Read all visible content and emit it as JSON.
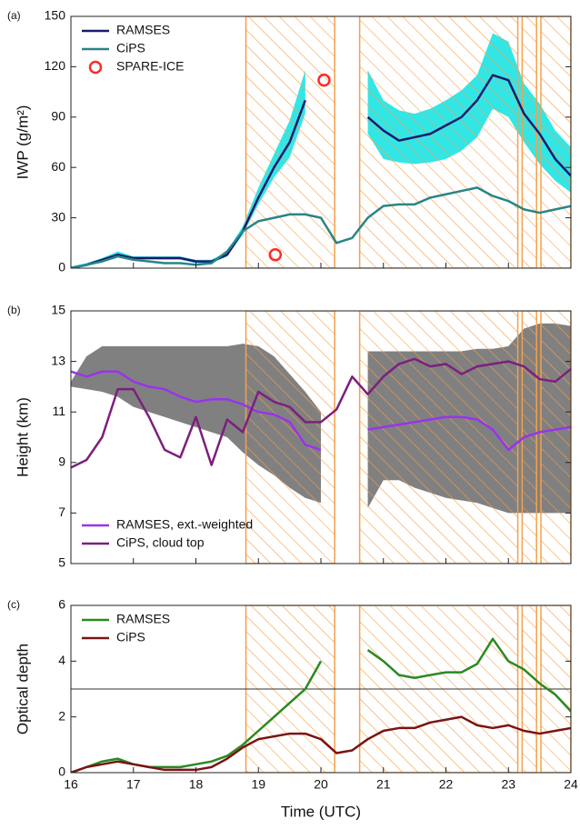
{
  "chart_data": [
    {
      "type": "line",
      "panel_label": "(a)",
      "y_label": "IWP (g/m²)",
      "xlim": [
        16,
        24
      ],
      "ylim": [
        0,
        150
      ],
      "yticks": [
        0,
        30,
        60,
        90,
        120,
        150
      ],
      "legend": "upper left",
      "hatch_color": "#f5a04a",
      "shaded_regions": [
        [
          18.8,
          20.22
        ],
        [
          20.62,
          23.15
        ],
        [
          23.22,
          23.45
        ],
        [
          23.52,
          24
        ]
      ],
      "x": [
        16,
        16.25,
        16.5,
        16.75,
        17,
        17.25,
        17.5,
        17.75,
        18,
        18.25,
        18.5,
        18.75,
        19,
        19.25,
        19.5,
        19.75,
        20,
        20.25,
        20.5,
        20.75,
        21,
        21.25,
        21.5,
        21.75,
        22,
        22.25,
        22.5,
        22.75,
        23,
        23.25,
        23.5,
        23.75,
        24
      ],
      "band": {
        "color": "#33e6e6",
        "lower": [
          0,
          1,
          4,
          7,
          5,
          5,
          5,
          5,
          3,
          3,
          7,
          20,
          38,
          54,
          66,
          92,
          null,
          null,
          null,
          80,
          65,
          63,
          62,
          63,
          65,
          70,
          78,
          95,
          90,
          75,
          62,
          52,
          45
        ],
        "upper": [
          1,
          3,
          6,
          10,
          7,
          7,
          7,
          7,
          5,
          5,
          10,
          25,
          48,
          68,
          88,
          118,
          null,
          null,
          null,
          118,
          100,
          94,
          92,
          95,
          100,
          106,
          115,
          140,
          135,
          110,
          98,
          82,
          72
        ]
      },
      "series": [
        {
          "name": "RAMSES",
          "color": "#1b1a6e",
          "values": [
            0,
            2,
            5,
            8,
            6,
            6,
            6,
            6,
            4,
            4,
            8,
            22,
            42,
            60,
            75,
            100,
            null,
            null,
            null,
            90,
            82,
            76,
            78,
            80,
            85,
            90,
            100,
            115,
            112,
            92,
            80,
            65,
            55
          ]
        },
        {
          "name": "CiPS",
          "color": "#2a8585",
          "values": [
            0,
            2,
            4,
            7,
            5,
            4,
            3,
            3,
            2,
            3,
            10,
            22,
            28,
            30,
            32,
            32,
            30,
            15,
            18,
            30,
            37,
            38,
            38,
            42,
            44,
            46,
            48,
            43,
            40,
            35,
            33,
            35,
            37
          ]
        },
        {
          "name": "SPARE-ICE",
          "color": "#ff2a2a",
          "type": "scatter",
          "x": [
            19.27,
            20.05
          ],
          "values": [
            8,
            112
          ]
        }
      ]
    },
    {
      "type": "line",
      "panel_label": "(b)",
      "y_label": "Height (km)",
      "xlim": [
        16,
        24
      ],
      "ylim": [
        5,
        15
      ],
      "yticks": [
        5,
        7,
        9,
        11,
        13,
        15
      ],
      "legend": "lower left",
      "hatch_color": "#f5a04a",
      "shaded_regions": [
        [
          18.8,
          20.22
        ],
        [
          20.62,
          23.15
        ],
        [
          23.22,
          23.45
        ],
        [
          23.52,
          24
        ]
      ],
      "x": [
        16,
        16.25,
        16.5,
        16.75,
        17,
        17.25,
        17.5,
        17.75,
        18,
        18.25,
        18.5,
        18.75,
        19,
        19.25,
        19.5,
        19.75,
        20,
        20.25,
        20.5,
        20.75,
        21,
        21.25,
        21.5,
        21.75,
        22,
        22.25,
        22.5,
        22.75,
        23,
        23.25,
        23.5,
        23.75,
        24
      ],
      "band": {
        "color": "#808080",
        "lower": [
          12.0,
          11.9,
          11.8,
          11.6,
          11.2,
          11.0,
          10.8,
          10.6,
          10.4,
          10.2,
          10.0,
          9.4,
          8.9,
          8.5,
          8.0,
          7.6,
          7.4,
          null,
          null,
          7.2,
          8.3,
          8.3,
          8.0,
          7.8,
          7.6,
          7.5,
          7.4,
          7.2,
          7.0,
          7.0,
          7.0,
          7.0,
          7.0
        ],
        "upper": [
          12.2,
          13.2,
          13.6,
          13.6,
          13.6,
          13.6,
          13.6,
          13.6,
          13.6,
          13.6,
          13.6,
          13.7,
          13.6,
          13.2,
          12.5,
          11.8,
          11.0,
          null,
          null,
          13.4,
          13.4,
          13.4,
          13.4,
          13.4,
          13.4,
          13.4,
          13.5,
          13.5,
          13.6,
          14.3,
          14.5,
          14.5,
          14.4
        ]
      },
      "series": [
        {
          "name": "RAMSES, ext.-weighted",
          "color": "#9933ee",
          "values": [
            12.6,
            12.4,
            12.6,
            12.6,
            12.2,
            12.0,
            11.9,
            11.6,
            11.4,
            11.5,
            11.5,
            11.3,
            11.0,
            10.9,
            10.6,
            9.7,
            9.5,
            null,
            null,
            10.3,
            10.4,
            10.5,
            10.6,
            10.7,
            10.8,
            10.8,
            10.7,
            10.3,
            9.5,
            10.0,
            10.2,
            10.3,
            10.4
          ]
        },
        {
          "name": "CiPS, cloud top",
          "color": "#7d1f7d",
          "values": [
            8.8,
            9.1,
            10,
            11.9,
            11.9,
            10.8,
            9.5,
            9.2,
            10.8,
            8.9,
            10.7,
            10.2,
            11.8,
            11.4,
            11.2,
            10.6,
            10.6,
            11.1,
            12.4,
            11.7,
            12.4,
            12.9,
            13.1,
            12.8,
            12.9,
            12.5,
            12.8,
            12.9,
            13.0,
            12.8,
            12.3,
            12.2,
            12.7
          ]
        }
      ]
    },
    {
      "type": "line",
      "panel_label": "(c)",
      "y_label": "Optical depth",
      "x_label": "Time (UTC)",
      "xlim": [
        16,
        24
      ],
      "xticks": [
        16,
        17,
        18,
        19,
        20,
        21,
        22,
        23,
        24
      ],
      "ylim": [
        0,
        6
      ],
      "yticks": [
        0,
        2,
        4,
        6
      ],
      "legend": "upper left",
      "hline": 3,
      "hatch_color": "#f5a04a",
      "shaded_regions": [
        [
          18.8,
          20.22
        ],
        [
          20.62,
          23.15
        ],
        [
          23.22,
          23.45
        ],
        [
          23.52,
          24
        ]
      ],
      "x": [
        16,
        16.25,
        16.5,
        16.75,
        17,
        17.25,
        17.5,
        17.75,
        18,
        18.25,
        18.5,
        18.75,
        19,
        19.25,
        19.5,
        19.75,
        20,
        20.25,
        20.5,
        20.75,
        21,
        21.25,
        21.5,
        21.75,
        22,
        22.25,
        22.5,
        22.75,
        23,
        23.25,
        23.5,
        23.75,
        24
      ],
      "series": [
        {
          "name": "RAMSES",
          "color": "#2a8a22",
          "values": [
            0,
            0.2,
            0.4,
            0.5,
            0.3,
            0.2,
            0.2,
            0.2,
            0.3,
            0.4,
            0.6,
            1.0,
            1.5,
            2.0,
            2.5,
            3.0,
            4.0,
            null,
            null,
            4.4,
            4.0,
            3.5,
            3.4,
            3.5,
            3.6,
            3.6,
            3.9,
            4.8,
            4.0,
            3.7,
            3.2,
            2.8,
            2.2
          ]
        },
        {
          "name": "CiPS",
          "color": "#7a1414",
          "values": [
            0,
            0.2,
            0.3,
            0.4,
            0.3,
            0.2,
            0.1,
            0.1,
            0.1,
            0.2,
            0.5,
            0.9,
            1.2,
            1.3,
            1.4,
            1.4,
            1.2,
            0.7,
            0.8,
            1.2,
            1.5,
            1.6,
            1.6,
            1.8,
            1.9,
            2.0,
            1.7,
            1.6,
            1.7,
            1.5,
            1.4,
            1.5,
            1.6
          ]
        }
      ]
    }
  ]
}
